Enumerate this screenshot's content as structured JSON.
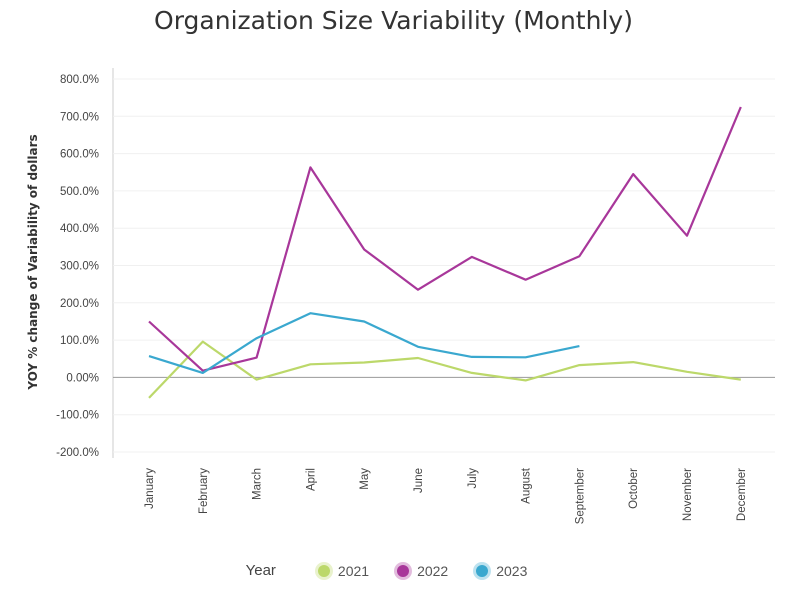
{
  "chart_data": {
    "type": "line",
    "title": "Organization Size Variability (Monthly)",
    "ylabel": "YOY % change of Variability of dollars",
    "xlabel": "",
    "ylim": [
      -200,
      800
    ],
    "yticks": [
      "800.0%",
      "700.0%",
      "600.0%",
      "500.0%",
      "400.0%",
      "300.0%",
      "200.0%",
      "100.0%",
      "0.00%",
      "-100.0%",
      "-200.0%"
    ],
    "ytick_values": [
      800,
      700,
      600,
      500,
      400,
      300,
      200,
      100,
      0,
      -100,
      -200
    ],
    "categories": [
      "January",
      "February",
      "March",
      "April",
      "May",
      "June",
      "July",
      "August",
      "September",
      "October",
      "November",
      "December"
    ],
    "legend_title": "Year",
    "series": [
      {
        "name": "2021",
        "color": "#bcd86a",
        "values": [
          -55,
          96,
          -6,
          35,
          40,
          52,
          12,
          -8,
          33,
          41,
          15,
          -6
        ]
      },
      {
        "name": "2022",
        "color": "#a8379a",
        "values": [
          150,
          18,
          53,
          563,
          343,
          235,
          323,
          262,
          325,
          545,
          380,
          725
        ]
      },
      {
        "name": "2023",
        "color": "#3aa8cf",
        "values": [
          57,
          12,
          105,
          172,
          150,
          82,
          55,
          54,
          84,
          null,
          null,
          null
        ]
      }
    ]
  }
}
